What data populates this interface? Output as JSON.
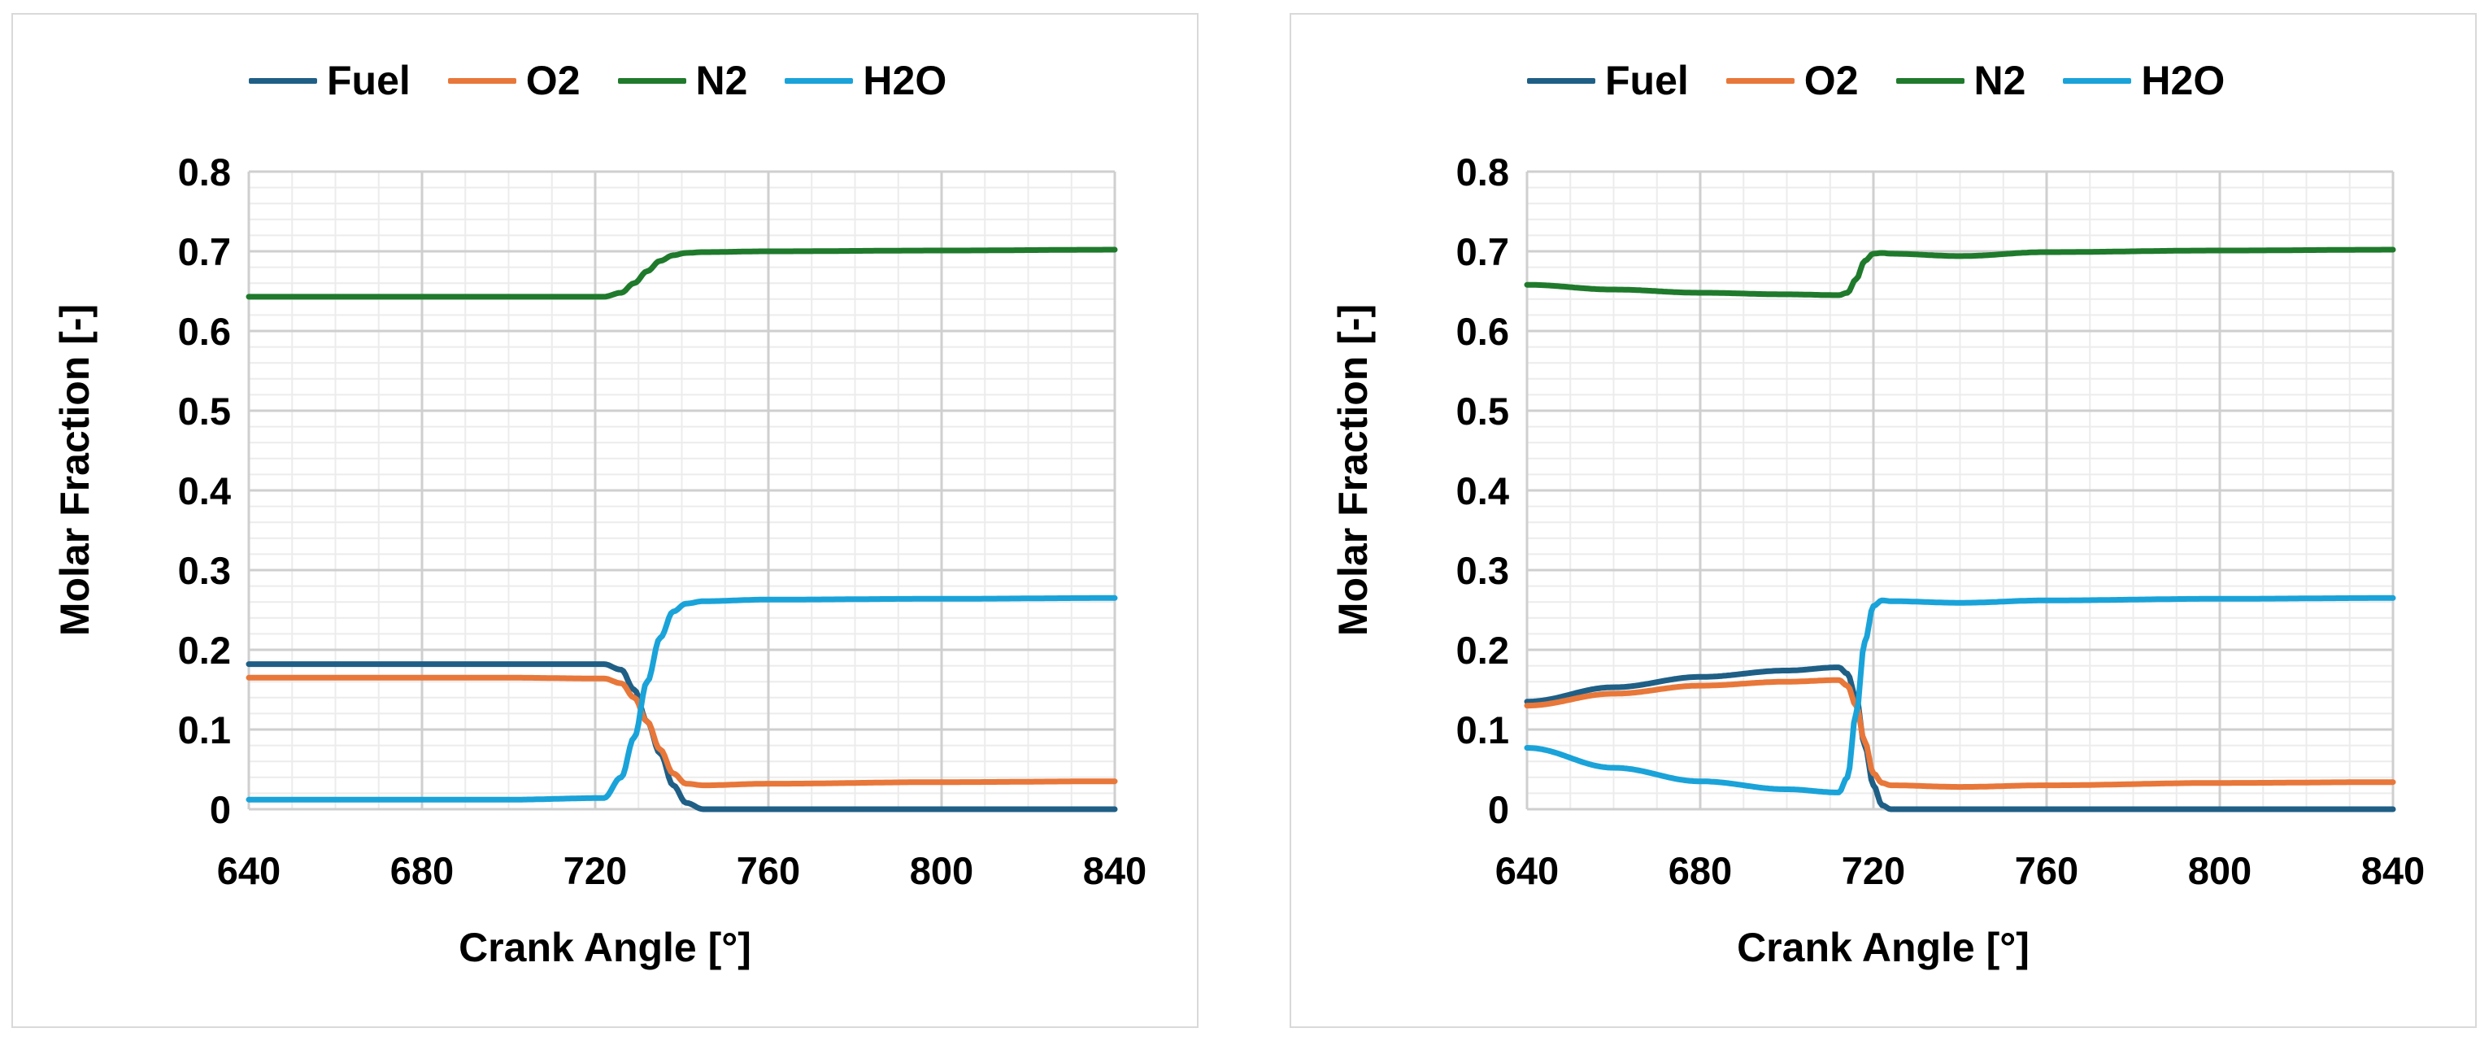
{
  "colors": {
    "Fuel": "#1f5f86",
    "O2": "#e8773a",
    "N2": "#1f7a2c",
    "H2O": "#1aa3d9"
  },
  "chart_data": [
    {
      "type": "line",
      "title": "",
      "xlabel": "Crank Angle [°]",
      "ylabel": "Molar Fraction [-]",
      "xlim": [
        640,
        840
      ],
      "ylim": [
        0,
        0.8
      ],
      "x_ticks": [
        "640",
        "680",
        "720",
        "760",
        "800",
        "840"
      ],
      "y_ticks": [
        "0",
        "0.1",
        "0.2",
        "0.3",
        "0.4",
        "0.5",
        "0.6",
        "0.7",
        "0.8"
      ],
      "legend": [
        "Fuel",
        "O2",
        "N2",
        "H2O"
      ],
      "series": [
        {
          "name": "Fuel",
          "x": [
            640,
            700,
            722,
            726,
            729,
            732,
            735,
            738,
            741,
            745,
            760,
            800,
            840
          ],
          "y": [
            0.182,
            0.182,
            0.182,
            0.175,
            0.15,
            0.11,
            0.07,
            0.03,
            0.008,
            0.0,
            0.0,
            0.0,
            0.0
          ]
        },
        {
          "name": "O2",
          "x": [
            640,
            700,
            722,
            726,
            729,
            732,
            735,
            738,
            741,
            745,
            760,
            800,
            840
          ],
          "y": [
            0.165,
            0.165,
            0.164,
            0.158,
            0.14,
            0.11,
            0.075,
            0.045,
            0.032,
            0.03,
            0.032,
            0.034,
            0.035
          ]
        },
        {
          "name": "N2",
          "x": [
            640,
            700,
            722,
            726,
            729,
            732,
            735,
            738,
            741,
            745,
            760,
            800,
            840
          ],
          "y": [
            0.643,
            0.643,
            0.643,
            0.648,
            0.66,
            0.675,
            0.688,
            0.695,
            0.698,
            0.699,
            0.7,
            0.701,
            0.702
          ]
        },
        {
          "name": "H2O",
          "x": [
            640,
            700,
            722,
            726,
            729,
            732,
            735,
            738,
            741,
            745,
            760,
            800,
            840
          ],
          "y": [
            0.012,
            0.012,
            0.014,
            0.04,
            0.09,
            0.16,
            0.215,
            0.248,
            0.258,
            0.261,
            0.263,
            0.264,
            0.265
          ]
        }
      ]
    },
    {
      "type": "line",
      "title": "",
      "xlabel": "Crank Angle [°]",
      "ylabel": "Molar Fraction [-]",
      "xlim": [
        640,
        840
      ],
      "ylim": [
        0,
        0.8
      ],
      "x_ticks": [
        "640",
        "680",
        "720",
        "760",
        "800",
        "840"
      ],
      "y_ticks": [
        "0",
        "0.1",
        "0.2",
        "0.3",
        "0.4",
        "0.5",
        "0.6",
        "0.7",
        "0.8"
      ],
      "legend": [
        "Fuel",
        "O2",
        "N2",
        "H2O"
      ],
      "series": [
        {
          "name": "Fuel",
          "x": [
            640,
            660,
            680,
            700,
            712,
            714,
            716,
            718,
            720,
            722,
            724,
            740,
            760,
            800,
            840
          ],
          "y": [
            0.135,
            0.153,
            0.166,
            0.174,
            0.178,
            0.17,
            0.14,
            0.08,
            0.03,
            0.005,
            0.0,
            0.0,
            0.0,
            0.0,
            0.0
          ]
        },
        {
          "name": "O2",
          "x": [
            640,
            660,
            680,
            700,
            712,
            714,
            716,
            718,
            720,
            722,
            724,
            740,
            760,
            800,
            840
          ],
          "y": [
            0.13,
            0.145,
            0.155,
            0.16,
            0.162,
            0.155,
            0.13,
            0.085,
            0.045,
            0.033,
            0.03,
            0.028,
            0.03,
            0.033,
            0.034
          ]
        },
        {
          "name": "N2",
          "x": [
            640,
            660,
            680,
            700,
            712,
            714,
            716,
            718,
            720,
            722,
            724,
            740,
            760,
            800,
            840
          ],
          "y": [
            0.658,
            0.652,
            0.648,
            0.646,
            0.645,
            0.648,
            0.665,
            0.688,
            0.697,
            0.698,
            0.697,
            0.694,
            0.699,
            0.701,
            0.702
          ]
        },
        {
          "name": "H2O",
          "x": [
            640,
            660,
            680,
            700,
            712,
            714,
            716,
            718,
            720,
            722,
            724,
            740,
            760,
            800,
            840
          ],
          "y": [
            0.077,
            0.052,
            0.035,
            0.025,
            0.021,
            0.04,
            0.12,
            0.21,
            0.255,
            0.262,
            0.261,
            0.259,
            0.262,
            0.264,
            0.265
          ]
        }
      ]
    }
  ]
}
